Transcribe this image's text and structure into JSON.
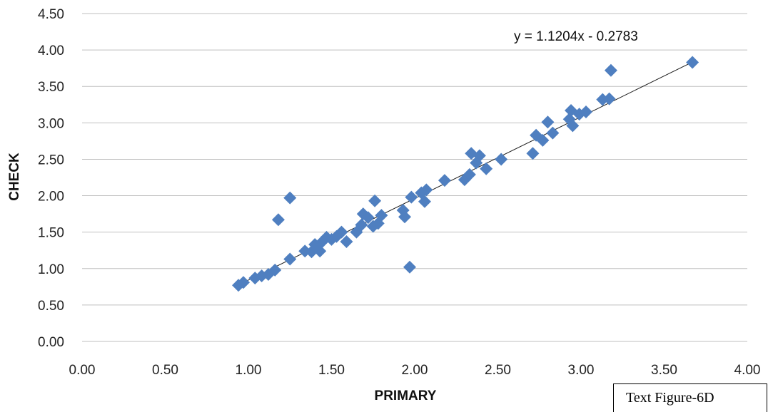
{
  "chart_data": {
    "type": "scatter",
    "title": "",
    "xlabel": "PRIMARY",
    "ylabel": "CHECK",
    "xlim": [
      0,
      4
    ],
    "ylim": [
      0,
      4.5
    ],
    "x_ticks": [
      "0.00",
      "0.50",
      "1.00",
      "1.50",
      "2.00",
      "2.50",
      "3.00",
      "3.50",
      "4.00"
    ],
    "y_ticks": [
      "0.00",
      "0.50",
      "1.00",
      "1.50",
      "2.00",
      "2.50",
      "3.00",
      "3.50",
      "4.00",
      "4.50"
    ],
    "grid": "horizontal",
    "marker": "diamond",
    "point_color": "#4f7fc0",
    "trendline": {
      "slope": 1.1204,
      "intercept": -0.2783,
      "x_range": [
        0.94,
        3.68
      ]
    },
    "equation_label": "y = 1.1204x - 0.2783",
    "points": [
      [
        0.94,
        0.77
      ],
      [
        0.97,
        0.81
      ],
      [
        1.04,
        0.87
      ],
      [
        1.08,
        0.9
      ],
      [
        1.12,
        0.92
      ],
      [
        1.16,
        0.98
      ],
      [
        1.18,
        1.67
      ],
      [
        1.25,
        1.13
      ],
      [
        1.25,
        1.97
      ],
      [
        1.34,
        1.24
      ],
      [
        1.38,
        1.23
      ],
      [
        1.4,
        1.33
      ],
      [
        1.43,
        1.24
      ],
      [
        1.44,
        1.36
      ],
      [
        1.47,
        1.43
      ],
      [
        1.5,
        1.4
      ],
      [
        1.53,
        1.44
      ],
      [
        1.56,
        1.5
      ],
      [
        1.59,
        1.37
      ],
      [
        1.65,
        1.5
      ],
      [
        1.68,
        1.6
      ],
      [
        1.69,
        1.75
      ],
      [
        1.72,
        1.7
      ],
      [
        1.75,
        1.58
      ],
      [
        1.76,
        1.93
      ],
      [
        1.78,
        1.62
      ],
      [
        1.8,
        1.73
      ],
      [
        1.93,
        1.8
      ],
      [
        1.94,
        1.71
      ],
      [
        1.97,
        1.02
      ],
      [
        1.98,
        1.98
      ],
      [
        2.04,
        2.04
      ],
      [
        2.06,
        1.92
      ],
      [
        2.07,
        2.08
      ],
      [
        2.18,
        2.21
      ],
      [
        2.3,
        2.22
      ],
      [
        2.33,
        2.29
      ],
      [
        2.34,
        2.58
      ],
      [
        2.37,
        2.45
      ],
      [
        2.39,
        2.55
      ],
      [
        2.43,
        2.37
      ],
      [
        2.52,
        2.5
      ],
      [
        2.71,
        2.58
      ],
      [
        2.73,
        2.83
      ],
      [
        2.77,
        2.76
      ],
      [
        2.8,
        3.01
      ],
      [
        2.83,
        2.86
      ],
      [
        2.93,
        3.05
      ],
      [
        2.94,
        3.17
      ],
      [
        2.95,
        2.96
      ],
      [
        2.99,
        3.12
      ],
      [
        3.03,
        3.15
      ],
      [
        3.13,
        3.32
      ],
      [
        3.17,
        3.33
      ],
      [
        3.18,
        3.72
      ],
      [
        3.67,
        3.83
      ]
    ]
  },
  "caption": "Text Figure-6D"
}
